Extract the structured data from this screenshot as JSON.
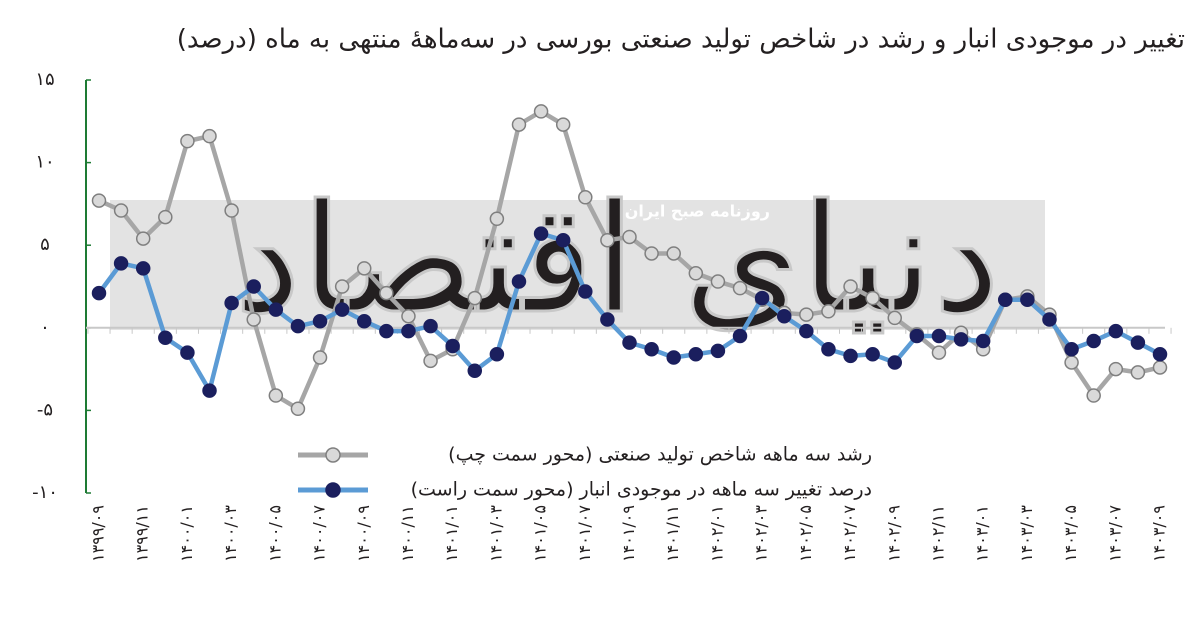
{
  "chart_data": {
    "type": "line",
    "title": "تغییر در موجودی انبار و رشد در شاخص تولید صنعتی بورسی در سه‌ماههٔ منتهی به ماه (درصد)",
    "watermark": {
      "text": "روزنامه صبح ایران",
      "logo": "دنیای اقتصاد"
    },
    "categories": [
      "۱۳۹۹/۰۹",
      null,
      "۱۳۹۹/۱۱",
      null,
      "۱۴۰۰/۰۱",
      null,
      "۱۴۰۰/۰۳",
      null,
      "۱۴۰۰/۰۵",
      null,
      "۱۴۰۰/۰۷",
      null,
      "۱۴۰۰/۰۹",
      null,
      "۱۴۰۰/۱۱",
      null,
      "۱۴۰۱/۰۱",
      null,
      "۱۴۰۱/۰۳",
      null,
      "۱۴۰۱/۰۵",
      null,
      "۱۴۰۱/۰۷",
      null,
      "۱۴۰۱/۰۹",
      null,
      "۱۴۰۱/۱۱",
      null,
      "۱۴۰۲/۰۱",
      null,
      "۱۴۰۲/۰۳",
      null,
      "۱۴۰۲/۰۵",
      null,
      "۱۴۰۲/۰۷",
      null,
      "۱۴۰۲/۰۹",
      null,
      "۱۴۰۲/۱۱",
      null,
      "۱۴۰۳/۰۱",
      null,
      "۱۴۰۳/۰۳",
      null,
      "۱۴۰۳/۰۵",
      null,
      "۱۴۰۳/۰۷",
      null,
      "۱۴۰۳/۰۹"
    ],
    "series": [
      {
        "name": "رشد سه ماهه شاخص تولید صنعتی (محور سمت چپ)",
        "color": "#a6a6a6",
        "marker_fill": "#d9d9d9",
        "marker_stroke": "#7f7f7f",
        "values": [
          7.7,
          7.1,
          5.4,
          6.7,
          11.3,
          11.6,
          7.1,
          0.5,
          -4.1,
          -4.9,
          -1.8,
          2.5,
          3.6,
          2.1,
          0.7,
          -2.0,
          -1.3,
          1.8,
          6.6,
          12.3,
          13.1,
          12.3,
          7.9,
          5.3,
          5.5,
          4.5,
          4.5,
          3.3,
          2.8,
          2.4,
          1.7,
          0.9,
          0.8,
          1.0,
          2.5,
          1.8,
          0.6,
          -0.4,
          -1.5,
          -0.3,
          -1.3,
          1.7,
          1.9,
          0.8,
          -2.1,
          -4.1,
          -2.5,
          -2.7,
          -2.4
        ]
      },
      {
        "name": "درصد تغییر سه ماهه در موجودی انبار (محور سمت راست)",
        "color": "#5b9bd5",
        "marker_fill": "#1b1f5e",
        "marker_stroke": "#1b1f5e",
        "values": [
          2.1,
          3.9,
          3.6,
          -0.6,
          -1.5,
          -3.8,
          1.5,
          2.5,
          1.1,
          0.1,
          0.4,
          1.1,
          0.4,
          -0.2,
          -0.2,
          0.1,
          -1.1,
          -2.6,
          -1.6,
          2.8,
          5.7,
          5.3,
          2.2,
          0.5,
          -0.9,
          -1.3,
          -1.8,
          -1.6,
          -1.4,
          -0.5,
          1.8,
          0.7,
          -0.2,
          -1.3,
          -1.7,
          -1.6,
          -2.1,
          -0.5,
          -0.5,
          -0.7,
          -0.8,
          1.7,
          1.7,
          0.5,
          -1.3,
          -0.8,
          -0.2,
          -0.9,
          -1.6
        ]
      }
    ],
    "ylim": [
      -10,
      15
    ],
    "yticks": [
      {
        "value": -10,
        "label": "-۱۰"
      },
      {
        "value": -5,
        "label": "-۵"
      },
      {
        "value": 0,
        "label": "۰"
      },
      {
        "value": 5,
        "label": "۵"
      },
      {
        "value": 10,
        "label": "۱۰"
      },
      {
        "value": 15,
        "label": "۱۵"
      }
    ],
    "axis_color": "#1e7b34"
  }
}
